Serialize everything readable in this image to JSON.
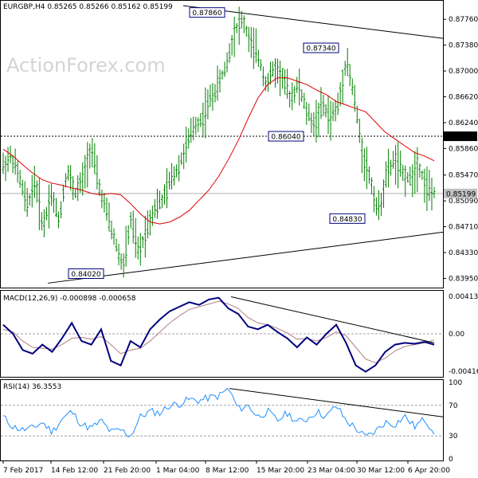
{
  "chart_data": [
    {
      "type": "ohlc",
      "title": "EURGBP,H4  0.85265 0.85266 0.85162 0.85199",
      "watermark": "ActionForex.com",
      "x_tick_labels": [
        "7 Feb 2017",
        "14 Feb 12:00",
        "21 Feb 20:00",
        "1 Mar 04:00",
        "8 Mar 12:00",
        "15 Mar 20:00",
        "23 Mar 04:00",
        "30 Mar 12:00",
        "6 Apr 20:00"
      ],
      "y_tick_labels": [
        "0.87760",
        "0.87380",
        "0.87000",
        "0.86620",
        "0.86240",
        "0.85860",
        "0.85470",
        "0.85090",
        "0.84710",
        "0.84330",
        "0.83950"
      ],
      "ylim": [
        0.8385,
        0.8795
      ],
      "close_series_approx": [
        0.856,
        0.8575,
        0.8545,
        0.85,
        0.854,
        0.847,
        0.852,
        0.848,
        0.8555,
        0.852,
        0.854,
        0.859,
        0.853,
        0.849,
        0.845,
        0.841,
        0.848,
        0.843,
        0.847,
        0.85,
        0.851,
        0.854,
        0.856,
        0.859,
        0.862,
        0.863,
        0.866,
        0.868,
        0.871,
        0.876,
        0.8775,
        0.874,
        0.872,
        0.868,
        0.8705,
        0.869,
        0.866,
        0.868,
        0.864,
        0.862,
        0.865,
        0.863,
        0.865,
        0.872,
        0.866,
        0.858,
        0.854,
        0.849,
        0.8545,
        0.857,
        0.855,
        0.854,
        0.8565,
        0.853,
        0.8519
      ],
      "ma_series_approx": [
        0.8585,
        0.8575,
        0.8562,
        0.855,
        0.854,
        0.8535,
        0.8532,
        0.8528,
        0.8525,
        0.852,
        0.8518,
        0.852,
        0.8518,
        0.8505,
        0.849,
        0.8478,
        0.8475,
        0.8478,
        0.8485,
        0.8495,
        0.851,
        0.8525,
        0.8545,
        0.857,
        0.8598,
        0.863,
        0.866,
        0.868,
        0.869,
        0.869,
        0.8685,
        0.868,
        0.8672,
        0.8665,
        0.8655,
        0.865,
        0.8645,
        0.864,
        0.8625,
        0.861,
        0.86,
        0.859,
        0.858,
        0.8575,
        0.8568
      ],
      "annotations": [
        {
          "label": "0.87860",
          "value": 0.8786
        },
        {
          "label": "0.87340",
          "value": 0.8734
        },
        {
          "label": "0.86040",
          "value": 0.8604
        },
        {
          "label": "0.84830",
          "value": 0.8483
        },
        {
          "label": "0.84020",
          "value": 0.8402
        }
      ],
      "current_price_label": "0.85199",
      "level_label": "0.86040",
      "level_value": 0.8604,
      "current_value": 0.85199,
      "colors": {
        "bars": "#008000",
        "ma": "#e00000",
        "level_box": "#000000",
        "current_box": "#c0c0c0",
        "annotation_border": "#000080"
      }
    },
    {
      "type": "line",
      "title": "MACD(12,26,9) -0.000898 -0.000658",
      "y_tick_labels": [
        "0.004131",
        "0.00",
        "-0.004162"
      ],
      "ylim": [
        -0.0045,
        0.0045
      ],
      "macd_series_approx": [
        0.001,
        0.0,
        -0.0018,
        -0.0022,
        -0.0012,
        -0.002,
        -0.0005,
        0.0012,
        -0.0008,
        -0.0012,
        0.0005,
        -0.003,
        -0.0035,
        -0.0008,
        -0.0015,
        0.0005,
        0.0016,
        0.0025,
        0.003,
        0.0035,
        0.0032,
        0.0038,
        0.004,
        0.0028,
        0.0022,
        0.0008,
        0.0005,
        0.001,
        0.0002,
        -0.0005,
        -0.0015,
        -0.0004,
        -0.0012,
        0.0,
        0.001,
        -0.001,
        -0.0035,
        -0.0042,
        -0.0035,
        -0.002,
        -0.0012,
        -0.001,
        -0.0011,
        -0.0009,
        -0.0012
      ],
      "signal_series_approx": [
        0.0005,
        0.0002,
        -0.0008,
        -0.0015,
        -0.0016,
        -0.0017,
        -0.0012,
        -0.0005,
        -0.0004,
        -0.0006,
        -0.0003,
        -0.0012,
        -0.0022,
        -0.0018,
        -0.0016,
        -0.0008,
        0.0002,
        0.0012,
        0.002,
        0.0027,
        0.003,
        0.0033,
        0.0036,
        0.0033,
        0.0028,
        0.0018,
        0.0012,
        0.001,
        0.0006,
        0.0001,
        -0.0006,
        -0.0005,
        -0.0008,
        -0.0004,
        0.0002,
        -0.0002,
        -0.0015,
        -0.0028,
        -0.0032,
        -0.0027,
        -0.0019,
        -0.0014,
        -0.0012,
        -0.001,
        -0.0007
      ],
      "colors": {
        "macd": "#000080",
        "signal": "#b08080"
      }
    },
    {
      "type": "line",
      "title": "RSI(14) 36.3553",
      "y_tick_labels": [
        "100",
        "70",
        "30",
        "0"
      ],
      "ylim": [
        0,
        100
      ],
      "levels": [
        70,
        30
      ],
      "rsi_series_approx": [
        55,
        42,
        38,
        40,
        48,
        35,
        52,
        62,
        45,
        40,
        50,
        35,
        38,
        30,
        55,
        62,
        60,
        70,
        72,
        78,
        76,
        80,
        82,
        92,
        65,
        70,
        55,
        62,
        50,
        60,
        48,
        52,
        62,
        55,
        70,
        50,
        40,
        28,
        36,
        48,
        45,
        56,
        42,
        52,
        36
      ],
      "colors": {
        "rsi": "#1e90ff"
      }
    }
  ]
}
